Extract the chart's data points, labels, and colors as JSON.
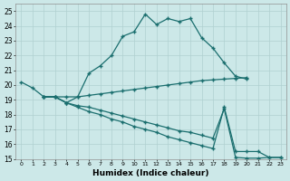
{
  "xlabel": "Humidex (Indice chaleur)",
  "bg_color": "#cce8e8",
  "grid_color": "#b0d0d0",
  "line_color": "#1a6e6e",
  "xlim": [
    -0.5,
    23.5
  ],
  "ylim": [
    15,
    25.5
  ],
  "xticks": [
    0,
    1,
    2,
    3,
    4,
    5,
    6,
    7,
    8,
    9,
    10,
    11,
    12,
    13,
    14,
    15,
    16,
    17,
    18,
    19,
    20,
    21,
    22,
    23
  ],
  "yticks": [
    15,
    16,
    17,
    18,
    19,
    20,
    21,
    22,
    23,
    24,
    25
  ],
  "line1_x": [
    0,
    1,
    2,
    3,
    4,
    5,
    6,
    7,
    8,
    9,
    10,
    11,
    12,
    13,
    14,
    15,
    16,
    17,
    18,
    19,
    20
  ],
  "line1_y": [
    20.2,
    19.8,
    19.2,
    19.2,
    18.8,
    19.2,
    20.8,
    21.3,
    22.0,
    23.3,
    23.6,
    24.8,
    24.1,
    24.5,
    24.3,
    24.5,
    23.2,
    22.5,
    21.5,
    20.6,
    20.4
  ],
  "line2_x": [
    2,
    3,
    4,
    5,
    6,
    7,
    8,
    9,
    10,
    11,
    12,
    13,
    14,
    15,
    16,
    17,
    18,
    19,
    20
  ],
  "line2_y": [
    19.2,
    19.2,
    19.2,
    19.2,
    19.3,
    19.4,
    19.5,
    19.6,
    19.7,
    19.8,
    19.9,
    20.0,
    20.1,
    20.2,
    20.3,
    20.35,
    20.4,
    20.45,
    20.5
  ],
  "line3_x": [
    2,
    3,
    4,
    5,
    6,
    7,
    8,
    9,
    10,
    11,
    12,
    13,
    14,
    15,
    16,
    17,
    18,
    19,
    20,
    21,
    22,
    23
  ],
  "line3_y": [
    19.2,
    19.2,
    18.8,
    18.6,
    18.5,
    18.3,
    18.1,
    17.9,
    17.7,
    17.5,
    17.3,
    17.1,
    16.9,
    16.8,
    16.6,
    16.4,
    18.4,
    15.1,
    15.05,
    15.05,
    15.1,
    15.1
  ],
  "line4_x": [
    2,
    3,
    4,
    5,
    6,
    7,
    8,
    9,
    10,
    11,
    12,
    13,
    14,
    15,
    16,
    17,
    18,
    19,
    20,
    21,
    22,
    23
  ],
  "line4_y": [
    19.2,
    19.2,
    18.8,
    18.5,
    18.2,
    18.0,
    17.7,
    17.5,
    17.2,
    17.0,
    16.8,
    16.5,
    16.3,
    16.1,
    15.9,
    15.7,
    18.5,
    15.5,
    15.5,
    15.5,
    15.1,
    15.1
  ]
}
